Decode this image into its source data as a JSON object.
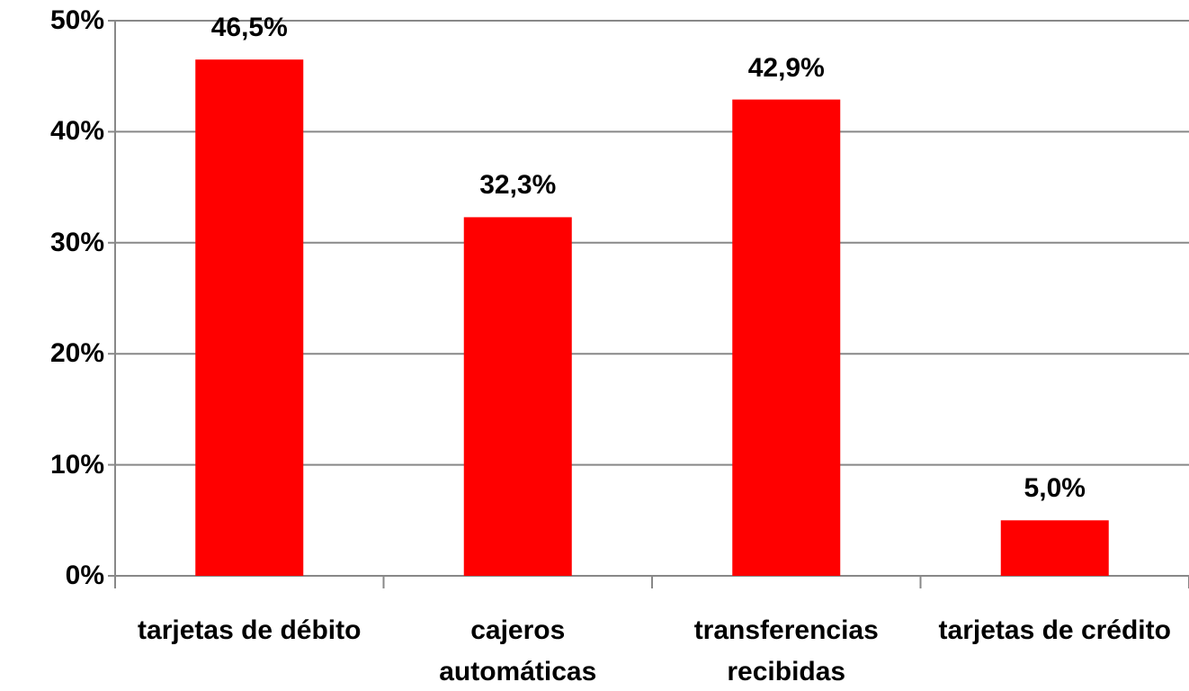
{
  "chart_data": {
    "type": "bar",
    "categories": [
      "tarjetas de débito",
      "cajeros automáticas",
      "transferencias recibidas",
      "tarjetas de crédito"
    ],
    "values": [
      46.5,
      32.3,
      42.9,
      5.0
    ],
    "value_labels": [
      "46,5%",
      "32,3%",
      "42,9%",
      "5,0%"
    ],
    "color": "#ff0000",
    "ylim": [
      0,
      50
    ],
    "yticks": [
      {
        "value": 0,
        "label": "0%"
      },
      {
        "value": 10,
        "label": "10%"
      },
      {
        "value": 20,
        "label": "20%"
      },
      {
        "value": 30,
        "label": "30%"
      },
      {
        "value": 40,
        "label": "40%"
      },
      {
        "value": 50,
        "label": "50%"
      }
    ],
    "grid": true
  }
}
